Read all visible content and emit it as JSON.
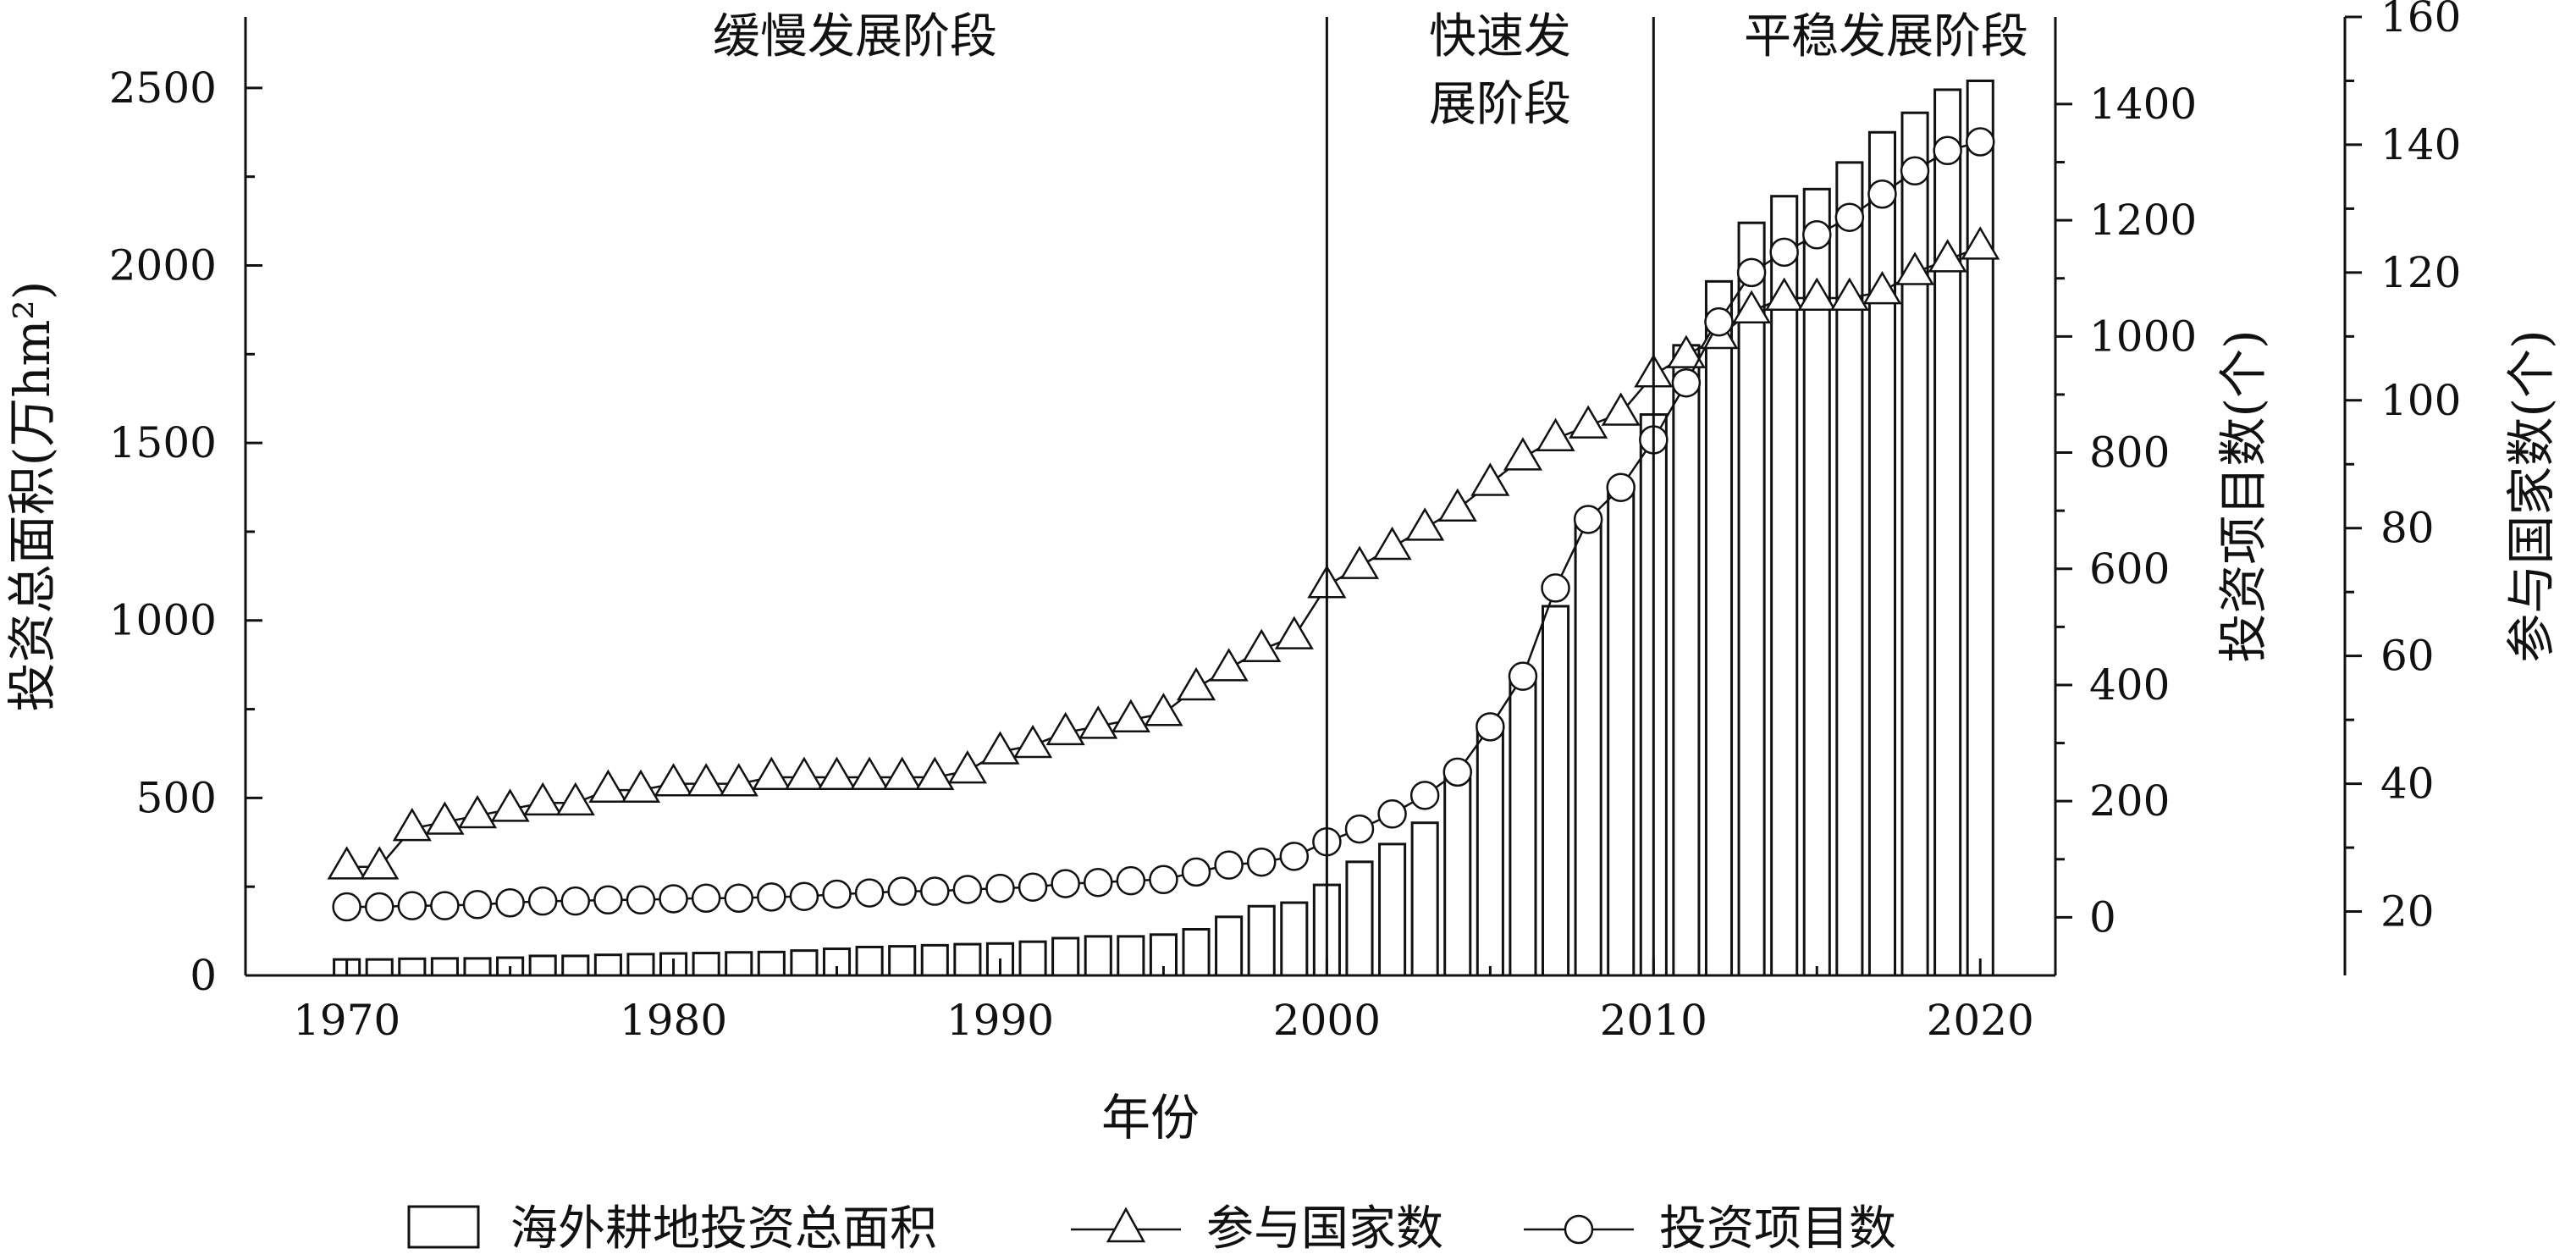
{
  "chart_data": {
    "type": "bar",
    "xlabel": "年份",
    "x_ticks": [
      1970,
      1980,
      1990,
      2000,
      2010,
      2020
    ],
    "years": [
      1970,
      1971,
      1972,
      1973,
      1974,
      1975,
      1976,
      1977,
      1978,
      1979,
      1980,
      1981,
      1982,
      1983,
      1984,
      1985,
      1986,
      1987,
      1988,
      1989,
      1990,
      1991,
      1992,
      1993,
      1994,
      1995,
      1996,
      1997,
      1998,
      1999,
      2000,
      2001,
      2002,
      2003,
      2004,
      2005,
      2006,
      2007,
      2008,
      2009,
      2010,
      2011,
      2012,
      2013,
      2014,
      2015,
      2016,
      2017,
      2018,
      2019,
      2020
    ],
    "axes": {
      "left": {
        "label": "投资总面积(万hm²)",
        "range": [
          0,
          2700
        ],
        "ticks": [
          0,
          500,
          1000,
          1500,
          2000,
          2500
        ]
      },
      "right1": {
        "label": "投资项目数(个)",
        "range": [
          -100,
          1550
        ],
        "ticks": [
          0,
          200,
          400,
          600,
          800,
          1000,
          1200,
          1400
        ]
      },
      "right2": {
        "label": "参与国家数(个)",
        "range": [
          10,
          160
        ],
        "ticks": [
          20,
          40,
          60,
          80,
          100,
          120,
          140,
          160
        ]
      }
    },
    "series": [
      {
        "name": "海外耕地投资总面积",
        "kind": "bar",
        "axis": "left",
        "values": [
          45,
          45,
          47,
          48,
          48,
          50,
          55,
          55,
          58,
          60,
          62,
          63,
          65,
          66,
          70,
          75,
          80,
          82,
          85,
          88,
          90,
          95,
          105,
          110,
          110,
          115,
          130,
          165,
          195,
          205,
          255,
          320,
          370,
          430,
          555,
          710,
          845,
          1040,
          1280,
          1370,
          1580,
          1775,
          1955,
          2120,
          2195,
          2215,
          2290,
          2375,
          2430,
          2495,
          2520
        ]
      },
      {
        "name": "参与国家数",
        "kind": "line-triangle",
        "axis": "right2",
        "values": [
          27,
          27,
          33,
          34,
          35,
          36,
          37,
          37,
          39,
          39,
          40,
          40,
          40,
          41,
          41,
          41,
          41,
          41,
          41,
          42,
          45,
          46,
          48,
          49,
          50,
          51,
          55,
          58,
          61,
          63,
          71,
          74,
          77,
          80,
          83,
          87,
          91,
          94,
          96,
          98,
          104,
          107,
          110,
          114,
          116,
          116,
          116,
          117,
          120,
          122,
          124
        ]
      },
      {
        "name": "投资项目数",
        "kind": "line-circle",
        "axis": "right1",
        "values": [
          18,
          18,
          20,
          20,
          22,
          25,
          28,
          28,
          30,
          30,
          32,
          33,
          33,
          35,
          36,
          40,
          42,
          45,
          45,
          48,
          50,
          52,
          58,
          60,
          63,
          65,
          78,
          90,
          95,
          105,
          130,
          152,
          178,
          210,
          250,
          328,
          415,
          567,
          685,
          740,
          822,
          920,
          1025,
          1110,
          1145,
          1175,
          1205,
          1245,
          1285,
          1320,
          1335
        ]
      }
    ],
    "phases": [
      {
        "label": "缓慢发展阶段",
        "start": 1970,
        "end": 2000
      },
      {
        "label": "快速发展阶段",
        "lines": [
          "快速发",
          "展阶段"
        ],
        "start": 2000,
        "end": 2010
      },
      {
        "label": "平稳发展阶段",
        "start": 2010,
        "end": 2020
      }
    ],
    "dividers": [
      2000,
      2010
    ],
    "legend_position": "bottom-center"
  }
}
